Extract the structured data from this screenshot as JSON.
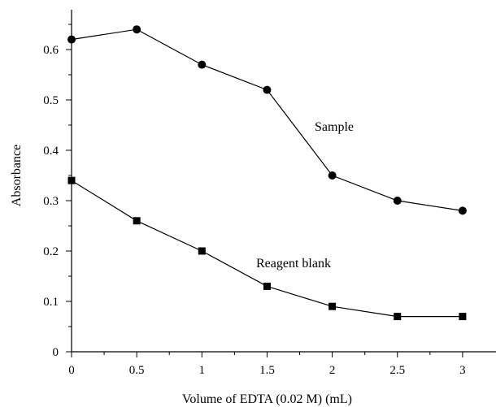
{
  "chart_data": {
    "type": "line",
    "xlabel": "Volume of EDTA (0.02 M) (mL)",
    "ylabel": "Absorbance",
    "xlim": [
      0,
      3.25
    ],
    "ylim": [
      0,
      0.7
    ],
    "x_ticks": [
      0,
      0.5,
      1,
      1.5,
      2,
      2.5,
      3
    ],
    "x_tick_labels": [
      "0",
      "0.5",
      "1",
      "1.5",
      "2",
      "2.5",
      "3"
    ],
    "y_ticks": [
      0,
      0.1,
      0.2,
      0.3,
      0.4,
      0.5,
      0.6
    ],
    "y_tick_labels": [
      "0",
      "0.1",
      "0.2",
      "0.3",
      "0.4",
      "0.5",
      "0.6"
    ],
    "grid": false,
    "legend": "none",
    "series": [
      {
        "name": "Sample",
        "marker": "circle",
        "color": "#000000",
        "x": [
          0,
          0.5,
          1,
          1.5,
          2,
          2.5,
          3
        ],
        "y": [
          0.62,
          0.64,
          0.57,
          0.52,
          0.35,
          0.3,
          0.28
        ]
      },
      {
        "name": "Reagent blank",
        "marker": "square",
        "color": "#000000",
        "x": [
          0,
          0.5,
          1,
          1.5,
          2,
          2.5,
          3
        ],
        "y": [
          0.34,
          0.26,
          0.2,
          0.13,
          0.09,
          0.07,
          0.07
        ]
      }
    ]
  }
}
